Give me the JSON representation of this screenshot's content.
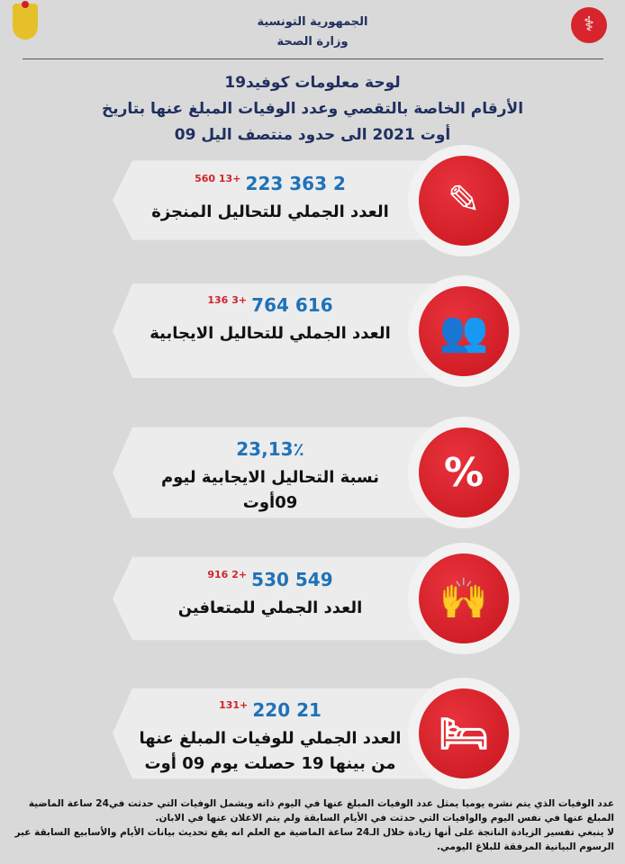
{
  "header": {
    "line1": "الجمهورية التونسية",
    "line2": "وزارة الصحة"
  },
  "title": {
    "line1": "لوحة معلومات كوفيد19",
    "line2": "الأرقام الخاصة بالتقصي وعدد الوفيات المبلغ عنها بتاريخ",
    "line3": "09 أوت 2021 الى حدود منتصف اليل"
  },
  "accent": "#d7252d",
  "number_color": "#1f72b8",
  "cards": [
    {
      "icon": "swab-test-icon",
      "value": "2 363 223",
      "increase": "+13 560",
      "label": "العدد الجملي للتحاليل المنجزة"
    },
    {
      "icon": "infected-people-icon",
      "value": "616 764",
      "increase": "+3 136",
      "label": "العدد الجملي للتحاليل الايجابية"
    },
    {
      "icon": "percent-icon",
      "value": "23,13٪",
      "increase": "",
      "label": "نسبة التحاليل الايجابية ليوم 09أوت"
    },
    {
      "icon": "recovered-people-icon",
      "value": "549 530",
      "increase": "+2 916",
      "label": "العدد الجملي للمتعافين"
    },
    {
      "icon": "patient-bed-icon",
      "value": "21 220",
      "increase": "+131",
      "label": "العدد الجملي للوفيات المبلغ عنها من بينها 19 حصلت يوم 09 أوت"
    }
  ],
  "note": {
    "p1": "عدد الوفيات الذي يتم نشره يوميا يمثل عدد الوفيات المبلغ عنها في اليوم ذاته ويشمل الوفيات التي حدثت في24 ساعة الماضية المبلغ عنها في نفس اليوم والوافيات التي حدثت في الأيام السابقة ولم يتم الاعلان عنها في الابان.",
    "p2": "لا ينبغي تفسير الزيادة الناتجة على أنها زيادة خلال الـ24 ساعة الماضية مع العلم انه يقع تحديث بيانات الأيام والأسابيع السابقة عبر الرسوم البيانية المرفقة للبلاغ اليومي."
  }
}
